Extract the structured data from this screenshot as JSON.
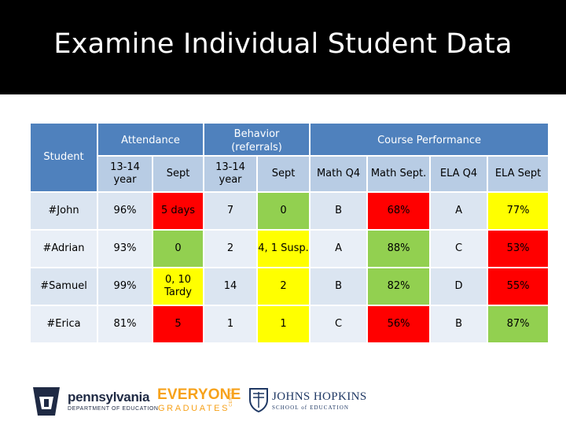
{
  "title": "Examine Individual Student Data",
  "table": {
    "group_headers": {
      "student": "Student",
      "attendance": "Attendance",
      "behavior": "Behavior (referrals)",
      "course_performance": "Course Performance"
    },
    "sub_headers": [
      "13-14 year",
      "Sept",
      "13-14 year",
      "Sept",
      "Math Q4",
      "Math Sept.",
      "ELA Q4",
      "ELA Sept"
    ],
    "rows": [
      {
        "name": "#John",
        "cells": [
          "96%",
          "5 days",
          "7",
          "0",
          "B",
          "68%",
          "A",
          "77%"
        ],
        "colors": [
          "",
          "red",
          "",
          "green",
          "",
          "red",
          "",
          "yellow"
        ]
      },
      {
        "name": "#Adrian",
        "cells": [
          "93%",
          "0",
          "2",
          "4, 1 Susp.",
          "A",
          "88%",
          "C",
          "53%"
        ],
        "colors": [
          "",
          "green",
          "",
          "yellow",
          "",
          "green",
          "",
          "red"
        ]
      },
      {
        "name": "#Samuel",
        "cells": [
          "99%",
          "0, 10 Tardy",
          "14",
          "2",
          "B",
          "82%",
          "D",
          "55%"
        ],
        "colors": [
          "",
          "yellow",
          "",
          "yellow",
          "",
          "green",
          "",
          "red"
        ]
      },
      {
        "name": "#Erica",
        "cells": [
          "81%",
          "5",
          "1",
          "1",
          "C",
          "56%",
          "B",
          "87%"
        ],
        "colors": [
          "",
          "red",
          "",
          "yellow",
          "",
          "red",
          "",
          "green"
        ]
      }
    ]
  },
  "colors": {
    "header_blue": "#4f81bd",
    "subheader_blue": "#b8cce4",
    "red": "#ff0000",
    "yellow": "#ffff00",
    "green": "#92d050"
  },
  "logos": {
    "pennsylvania": {
      "name": "pennsylvania",
      "dept": "DEPARTMENT OF EDUCATION"
    },
    "everyone_graduates": {
      "top": "EVERYONE",
      "bottom": "GRADUATES",
      "side": "CENTER"
    },
    "johns_hopkins": {
      "name": "JOHNS HOPKINS",
      "school": "SCHOOL of EDUCATION"
    }
  }
}
